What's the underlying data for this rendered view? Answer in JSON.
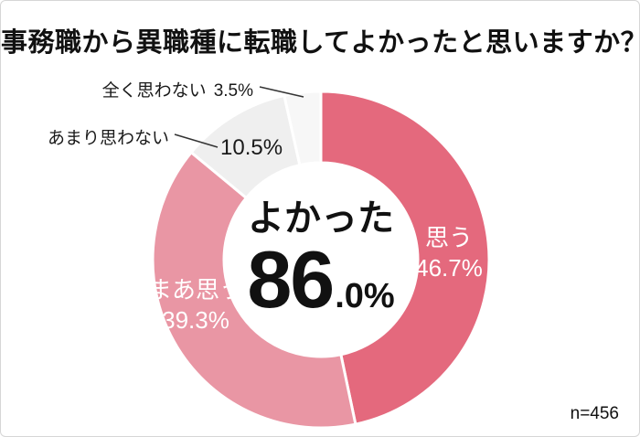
{
  "title": "事務職から異職種に転職してよかったと思いますか？",
  "chart_data": {
    "type": "pie",
    "subtype": "donut",
    "title": "事務職から異職種に転職してよかったと思いますか？",
    "unit": "%",
    "start_angle_deg": 0,
    "direction": "clockwise",
    "donut_hole_ratio": 0.58,
    "legend_position": "none",
    "sample_size": "n=456",
    "segments": [
      {
        "label": "思う",
        "value": 46.7,
        "value_label": "46.7%",
        "color": "#e4697d",
        "label_color": "#ffffff",
        "label_placement": "inside"
      },
      {
        "label": "まあ思う",
        "value": 39.3,
        "value_label": "39.3%",
        "color": "#e996a4",
        "label_color": "#ffffff",
        "label_placement": "inside"
      },
      {
        "label": "あまり思わない",
        "value": 10.5,
        "value_label": "10.5%",
        "color": "#efefef",
        "label_color": "#1a1a1a",
        "label_placement": "callout"
      },
      {
        "label": "全く思わない",
        "value": 3.5,
        "value_label": "3.5%",
        "color": "#f7f7f7",
        "label_color": "#1a1a1a",
        "label_placement": "callout"
      }
    ],
    "center_label": {
      "text": "よかった",
      "value": "86",
      "suffix": ".0%"
    }
  },
  "style": {
    "background": "#ffffff",
    "border_color": "#d6d6d6",
    "divider_color": "#ffffff",
    "callout_line_color": "#333333"
  }
}
